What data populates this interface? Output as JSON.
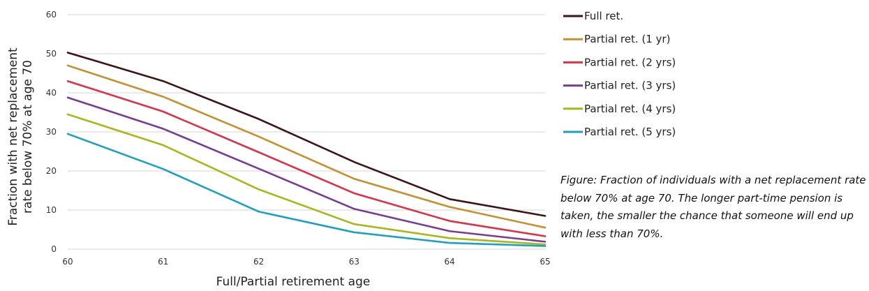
{
  "chart_data": {
    "type": "line",
    "x": [
      60,
      61,
      62,
      63,
      64,
      65
    ],
    "xlabel": "Full/Partial retirement age",
    "ylabel": "Fraction with net replacement rate below 70% at age 70",
    "xlim": [
      60,
      65
    ],
    "ylim": [
      0,
      60
    ],
    "yticks": [
      0,
      10,
      20,
      30,
      40,
      50,
      60
    ],
    "xticks": [
      60,
      61,
      62,
      63,
      64,
      65
    ],
    "grid": "horizontal",
    "legend": "right",
    "series": [
      {
        "name": "Full ret.",
        "color": "#3f1416",
        "values": [
          50.3,
          43,
          33.3,
          22.3,
          12.8,
          8.5
        ]
      },
      {
        "name": "Partial ret. (1 yr)",
        "color": "#c8902a",
        "values": [
          47,
          39,
          28.8,
          18,
          10.8,
          5.5
        ]
      },
      {
        "name": "Partial ret. (2 yrs)",
        "color": "#e03048",
        "values": [
          43,
          35.2,
          24.8,
          14.3,
          7.2,
          3.3
        ]
      },
      {
        "name": "Partial ret. (3 yrs)",
        "color": "#7a3a96",
        "values": [
          38.8,
          30.8,
          20.6,
          10.3,
          4.6,
          1.9
        ]
      },
      {
        "name": "Partial ret. (4 yrs)",
        "color": "#a8b814",
        "values": [
          34.5,
          26.6,
          15.3,
          6.4,
          2.8,
          1.2
        ]
      },
      {
        "name": "Partial ret. (5 yrs)",
        "color": "#1aa3c0",
        "values": [
          29.5,
          20.5,
          9.6,
          4.3,
          1.6,
          0.8
        ]
      }
    ]
  },
  "caption": "Figure: Fraction of individuals with a net replacement rate below 70% at age 70. The longer part-time pension is taken, the smaller the chance that someone will end up with less than 70%."
}
